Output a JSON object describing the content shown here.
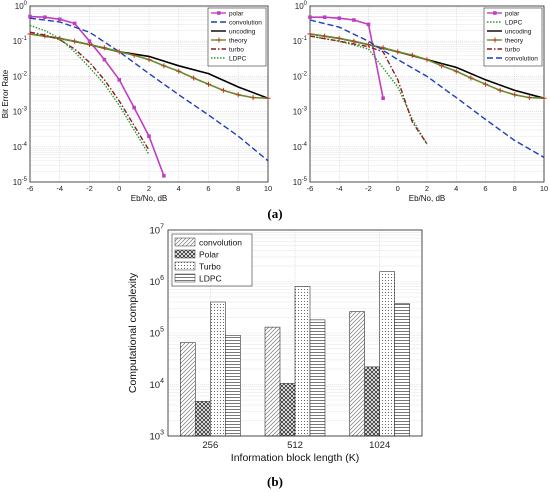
{
  "panel_labels": [
    "(a)",
    "(b)"
  ],
  "chart_data": [
    {
      "type": "line",
      "xlabel": "Eb/No, dB",
      "ylabel": "Bit Error Rate",
      "xlim": [
        -6,
        10
      ],
      "ylim_log10": [
        -5,
        0
      ],
      "yscale": "log",
      "grid": true,
      "legend_position": "top-right",
      "x_ticks": [
        "-6",
        "-4",
        "-2",
        "0",
        "2",
        "4",
        "6",
        "8",
        "10"
      ],
      "y_ticks": [
        "10^0",
        "10^-1",
        "10^-2",
        "10^-3",
        "10^-4",
        "10^-5"
      ],
      "series": [
        {
          "name": "polar",
          "color": "#c03fc0",
          "style": "solid-square",
          "x": [
            -6,
            -5,
            -4,
            -3,
            -2,
            -1,
            0,
            1,
            2,
            3
          ],
          "y": [
            0.5,
            0.48,
            0.42,
            0.32,
            0.1,
            0.03,
            0.008,
            0.0013,
            0.0002,
            1.5e-05
          ]
        },
        {
          "name": "convolution",
          "color": "#1f3fb8",
          "style": "dashed",
          "x": [
            -6,
            -4,
            -2,
            0,
            2,
            4,
            6,
            8,
            10
          ],
          "y": [
            0.45,
            0.35,
            0.18,
            0.05,
            0.012,
            0.003,
            0.0008,
            0.0002,
            4e-05
          ]
        },
        {
          "name": "uncoding",
          "color": "#000000",
          "style": "solid",
          "x": [
            -6,
            -4,
            -2,
            0,
            2,
            4,
            6,
            8,
            10
          ],
          "y": [
            0.16,
            0.12,
            0.08,
            0.05,
            0.037,
            0.02,
            0.012,
            0.005,
            0.0024
          ]
        },
        {
          "name": "theory",
          "color": "#6f8a2a",
          "style": "solid-plus",
          "x": [
            -6,
            -5,
            -4,
            -3,
            -2,
            -1,
            0,
            1,
            2,
            3,
            4,
            5,
            6,
            7,
            8,
            9,
            10
          ],
          "y": [
            0.16,
            0.14,
            0.12,
            0.1,
            0.08,
            0.065,
            0.05,
            0.04,
            0.03,
            0.02,
            0.014,
            0.009,
            0.006,
            0.004,
            0.003,
            0.0025,
            0.0024
          ]
        },
        {
          "name": "turbo",
          "color": "#8a1f1f",
          "style": "dash-dot",
          "x": [
            -6,
            -5,
            -4,
            -3,
            -2,
            -1,
            0,
            1,
            2
          ],
          "y": [
            0.18,
            0.15,
            0.11,
            0.06,
            0.025,
            0.008,
            0.002,
            0.0004,
            8e-05
          ]
        },
        {
          "name": "LDPC",
          "color": "#2a9a2a",
          "style": "dotted",
          "x": [
            -6,
            -5,
            -4,
            -3,
            -2,
            -1,
            0,
            1,
            2
          ],
          "y": [
            0.28,
            0.2,
            0.12,
            0.05,
            0.018,
            0.006,
            0.0015,
            0.0003,
            6e-05
          ]
        }
      ]
    },
    {
      "type": "line",
      "xlabel": "Eb/No, dB",
      "ylabel": "",
      "xlim": [
        -6,
        10
      ],
      "ylim_log10": [
        -5,
        0
      ],
      "yscale": "log",
      "grid": true,
      "legend_position": "top-right",
      "x_ticks": [
        "-6",
        "-4",
        "-2",
        "0",
        "2",
        "4",
        "6",
        "8",
        "10"
      ],
      "y_ticks": [
        "10^0",
        "10^-1",
        "10^-2",
        "10^-3",
        "10^-4",
        "10^-5"
      ],
      "series": [
        {
          "name": "polar",
          "color": "#c03fc0",
          "style": "solid-square",
          "x": [
            -6,
            -5,
            -4,
            -3,
            -2,
            -1
          ],
          "y": [
            0.48,
            0.48,
            0.45,
            0.4,
            0.3,
            0.0024
          ]
        },
        {
          "name": "LDPC",
          "color": "#2a9a2a",
          "style": "dotted",
          "x": [
            -6,
            -4,
            -2,
            0,
            1,
            2
          ],
          "y": [
            0.14,
            0.1,
            0.06,
            0.005,
            0.0006,
            0.00012
          ]
        },
        {
          "name": "uncoding",
          "color": "#000000",
          "style": "solid",
          "x": [
            -6,
            -4,
            -2,
            0,
            2,
            4,
            6,
            8,
            10
          ],
          "y": [
            0.16,
            0.12,
            0.08,
            0.05,
            0.03,
            0.018,
            0.008,
            0.004,
            0.0024
          ]
        },
        {
          "name": "theory",
          "color": "#6f8a2a",
          "style": "solid-plus",
          "x": [
            -6,
            -5,
            -4,
            -3,
            -2,
            -1,
            0,
            1,
            2,
            3,
            4,
            5,
            6,
            7,
            8,
            9,
            10
          ],
          "y": [
            0.16,
            0.14,
            0.12,
            0.1,
            0.08,
            0.065,
            0.05,
            0.04,
            0.03,
            0.02,
            0.014,
            0.009,
            0.006,
            0.004,
            0.003,
            0.0025,
            0.0024
          ]
        },
        {
          "name": "turbo",
          "color": "#8a1f1f",
          "style": "dash-dot",
          "x": [
            -6,
            -4,
            -2,
            -1,
            0,
            1,
            2
          ],
          "y": [
            0.14,
            0.1,
            0.07,
            0.05,
            0.008,
            0.0005,
            0.00012
          ]
        },
        {
          "name": "convolution",
          "color": "#1f3fb8",
          "style": "dashed",
          "x": [
            -6,
            -4,
            -2,
            0,
            2,
            4,
            6,
            8,
            10
          ],
          "y": [
            0.4,
            0.25,
            0.1,
            0.03,
            0.01,
            0.0025,
            0.0006,
            0.00015,
            5e-05
          ]
        }
      ]
    },
    {
      "type": "bar",
      "xlabel": "Information block length (K)",
      "ylabel": "Computational complexity",
      "yscale": "log",
      "ylim_log10": [
        3,
        7
      ],
      "grid": true,
      "legend_position": "top-left",
      "categories": [
        "256",
        "512",
        "1024"
      ],
      "y_ticks": [
        "10^3",
        "10^4",
        "10^5",
        "10^6",
        "10^7"
      ],
      "series": [
        {
          "name": "convolution",
          "pattern": "diag-light",
          "values": [
            65000,
            130000,
            260000
          ]
        },
        {
          "name": "Polar",
          "pattern": "cross-dark",
          "values": [
            4700,
            10500,
            22000
          ]
        },
        {
          "name": "Turbo",
          "pattern": "dots",
          "values": [
            400000,
            800000,
            1550000
          ]
        },
        {
          "name": "LDPC",
          "pattern": "hlines",
          "values": [
            90000,
            180000,
            370000
          ]
        }
      ]
    }
  ]
}
